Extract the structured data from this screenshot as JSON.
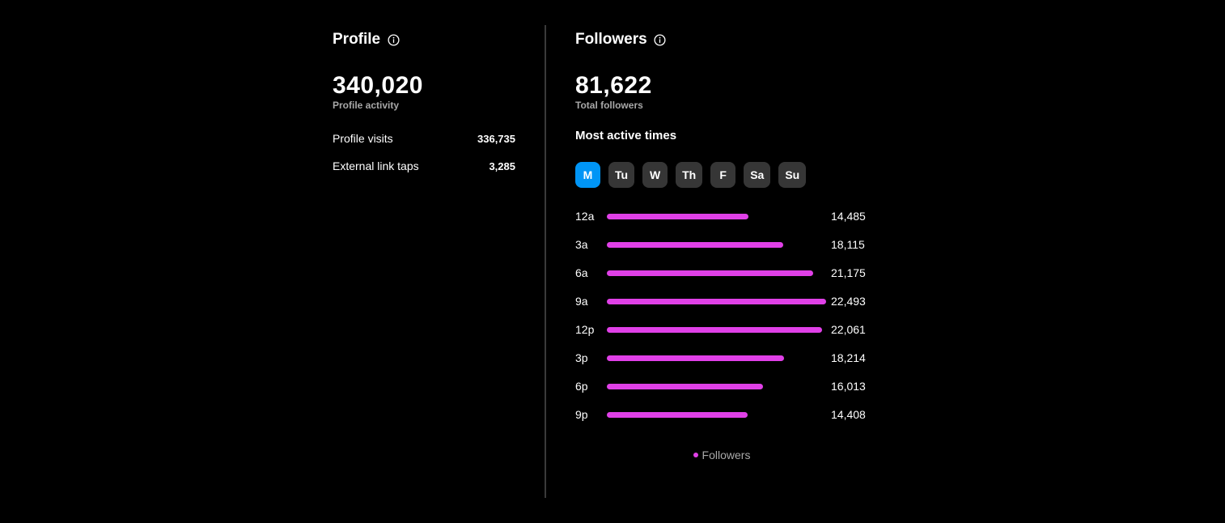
{
  "profile": {
    "title": "Profile",
    "info_icon": "info-icon",
    "total": "340,020",
    "total_caption": "Profile activity",
    "stats": [
      {
        "label": "Profile visits",
        "value": "336,735"
      },
      {
        "label": "External link taps",
        "value": "3,285"
      }
    ]
  },
  "followers": {
    "title": "Followers",
    "info_icon": "info-icon",
    "total": "81,622",
    "total_caption": "Total followers",
    "active_times_title": "Most active times",
    "days": [
      {
        "label": "M",
        "active": true
      },
      {
        "label": "Tu",
        "active": false
      },
      {
        "label": "W",
        "active": false
      },
      {
        "label": "Th",
        "active": false
      },
      {
        "label": "F",
        "active": false
      },
      {
        "label": "Sa",
        "active": false
      },
      {
        "label": "Su",
        "active": false
      }
    ],
    "legend_label": "Followers"
  },
  "colors": {
    "accent": "#0095f6",
    "bar": "#e040e7",
    "background": "#000000",
    "tab_bg": "#363636",
    "muted_text": "#a8a8a8"
  },
  "chart_data": {
    "type": "bar",
    "orientation": "horizontal",
    "categories": [
      "12a",
      "3a",
      "6a",
      "9a",
      "12p",
      "3p",
      "6p",
      "9p"
    ],
    "value_labels": [
      "14,485",
      "18,115",
      "21,175",
      "22,493",
      "22,061",
      "18,214",
      "16,013",
      "14,408"
    ],
    "series": [
      {
        "name": "Followers",
        "values": [
          14485,
          18115,
          21175,
          22493,
          22061,
          18214,
          16013,
          14408
        ]
      }
    ],
    "legend": "bottom-center",
    "grid": false
  }
}
